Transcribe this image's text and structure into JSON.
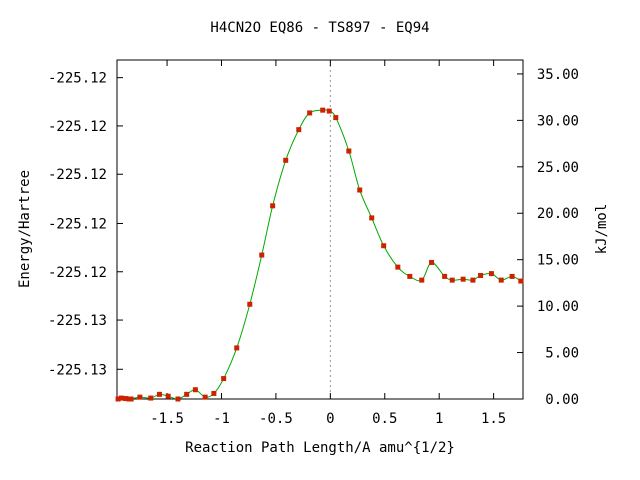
{
  "chart_data": {
    "type": "line",
    "title": "H4CN2O   EQ86 - TS897 - EQ94",
    "xlabel": "Reaction Path Length/A amu^{1/2}",
    "ylabel": "Energy/Hartree",
    "y2label": "kJ/mol",
    "xlim": [
      -1.96,
      1.77
    ],
    "y2lim": [
      0,
      36.5
    ],
    "x_ticks": [
      -1.5,
      -1,
      -0.5,
      0,
      0.5,
      1,
      1.5
    ],
    "x_tick_labels": [
      "-1.5",
      "-1",
      "-0.5",
      "0",
      "0.5",
      "1",
      "1.5"
    ],
    "y_tick_labels": [
      "-225.12",
      "-225.12",
      "-225.12",
      "-225.12",
      "-225.12",
      "-225.13",
      "-225.13"
    ],
    "y_tick_kj": [
      34.6,
      29.4,
      24.2,
      18.9,
      13.7,
      8.5,
      3.2
    ],
    "y2_ticks": [
      0,
      5,
      10,
      15,
      20,
      25,
      30,
      35
    ],
    "y2_tick_labels": [
      "0.00",
      "5.00",
      "10.00",
      "15.00",
      "20.00",
      "25.00",
      "30.00",
      "35.00"
    ],
    "ts_x": 0,
    "grid": false,
    "series": [
      {
        "color": "#00aa00",
        "marker_color": "#cc2200",
        "x": [
          -1.95,
          -1.92,
          -1.88,
          -1.85,
          -1.83,
          -1.75,
          -1.65,
          -1.57,
          -1.49,
          -1.4,
          -1.32,
          -1.24,
          -1.15,
          -1.07,
          -0.98,
          -0.86,
          -0.74,
          -0.63,
          -0.53,
          -0.41,
          -0.29,
          -0.19,
          -0.07,
          -0.01,
          0.05,
          0.17,
          0.27,
          0.38,
          0.49,
          0.62,
          0.73,
          0.84,
          0.93,
          1.05,
          1.12,
          1.22,
          1.31,
          1.38,
          1.48,
          1.57,
          1.67,
          1.75
        ],
        "y": [
          0.0,
          0.1,
          0.05,
          0.0,
          0.0,
          0.2,
          0.1,
          0.5,
          0.3,
          0.0,
          0.5,
          1.0,
          0.2,
          0.6,
          2.2,
          5.5,
          10.2,
          15.5,
          20.8,
          25.7,
          29.0,
          30.8,
          31.1,
          31.0,
          30.3,
          26.7,
          22.5,
          19.5,
          16.5,
          14.2,
          13.2,
          12.8,
          14.7,
          13.2,
          12.8,
          12.9,
          12.8,
          13.3,
          13.5,
          12.8,
          13.2,
          12.7
        ]
      }
    ]
  }
}
